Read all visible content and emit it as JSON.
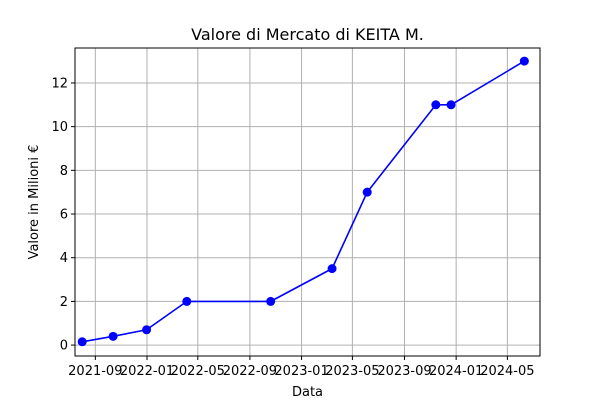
{
  "chart_data": {
    "type": "line",
    "title": "Valore di Mercato di KEITA M.",
    "xlabel": "Data",
    "ylabel": "Valore in Milioni €",
    "grid": true,
    "x_is_date": true,
    "xlim": [
      "2021-07-15",
      "2024-07-17"
    ],
    "ylim": [
      -0.5,
      13.6
    ],
    "xticks": [
      {
        "value": "2021-09-01",
        "label": "2021-09"
      },
      {
        "value": "2022-01-01",
        "label": "2022-01"
      },
      {
        "value": "2022-05-01",
        "label": "2022-05"
      },
      {
        "value": "2022-09-01",
        "label": "2022-09"
      },
      {
        "value": "2023-01-01",
        "label": "2023-01"
      },
      {
        "value": "2023-05-01",
        "label": "2023-05"
      },
      {
        "value": "2023-09-01",
        "label": "2023-09"
      },
      {
        "value": "2024-01-01",
        "label": "2024-01"
      },
      {
        "value": "2024-05-01",
        "label": "2024-05"
      }
    ],
    "yticks": [
      0,
      2,
      4,
      6,
      8,
      10,
      12
    ],
    "series": [
      {
        "name": "KEITA M.",
        "color": "#0000ff",
        "x": [
          "2021-08-01",
          "2021-10-13",
          "2021-12-31",
          "2022-04-05",
          "2022-10-20",
          "2023-03-14",
          "2023-06-05",
          "2023-11-14",
          "2023-12-20",
          "2024-06-10"
        ],
        "values": [
          0.15,
          0.4,
          0.7,
          2.0,
          2.0,
          3.5,
          7.0,
          11.0,
          11.0,
          13.0
        ]
      }
    ]
  },
  "colors": {
    "grid": "#b0b0b0",
    "axes": "#000000",
    "line": "#0000ff"
  }
}
